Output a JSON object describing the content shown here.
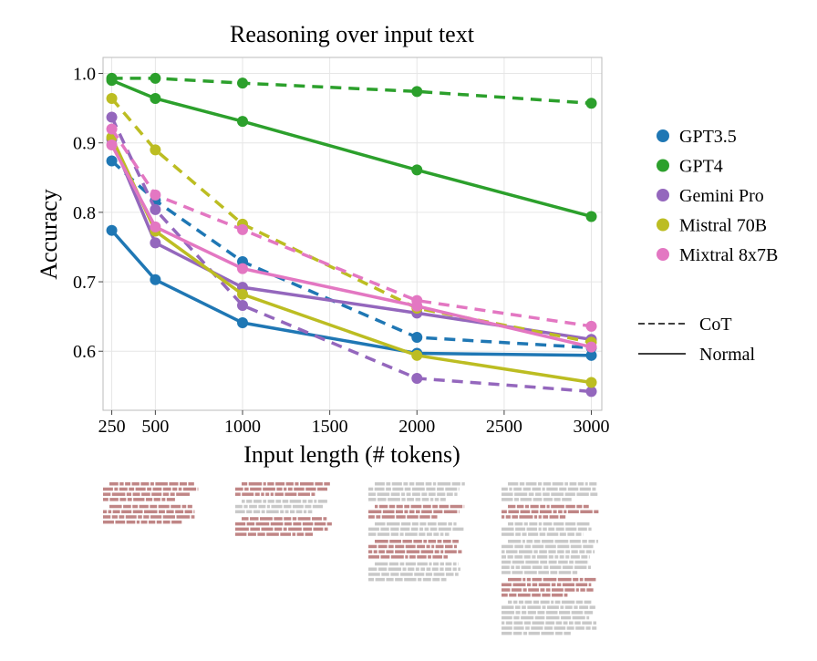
{
  "chart_data": {
    "type": "line",
    "title": "Reasoning over input text",
    "xlabel": "Input length (# tokens)",
    "ylabel": "Accuracy",
    "x": [
      250,
      500,
      1000,
      2000,
      3000
    ],
    "xticks": [
      250,
      500,
      1000,
      1500,
      2000,
      2500,
      3000
    ],
    "yticks": [
      0.6,
      0.7,
      0.8,
      0.9,
      1.0
    ],
    "ytick_labels": [
      "0.6",
      "0.7",
      "0.8",
      "0.9",
      "1.0"
    ],
    "xlim": [
      200,
      3060
    ],
    "ylim": [
      0.515,
      1.023
    ],
    "grid": true,
    "legend_placement": "right",
    "models": [
      {
        "name": "GPT3.5",
        "color": "#1f77b4"
      },
      {
        "name": "GPT4",
        "color": "#2ca02c"
      },
      {
        "name": "Gemini Pro",
        "color": "#9467bd"
      },
      {
        "name": "Mistral 70B",
        "color": "#bcbd22"
      },
      {
        "name": "Mixtral 8x7B",
        "color": "#e377c2"
      }
    ],
    "styles": [
      {
        "name": "CoT",
        "dash": "dashed"
      },
      {
        "name": "Normal",
        "dash": "solid"
      }
    ],
    "series": [
      {
        "model": "GPT3.5",
        "style": "Normal",
        "values": [
          0.774,
          0.703,
          0.641,
          0.597,
          0.594
        ]
      },
      {
        "model": "GPT3.5",
        "style": "CoT",
        "values": [
          0.874,
          0.817,
          0.729,
          0.62,
          0.605
        ]
      },
      {
        "model": "GPT4",
        "style": "Normal",
        "values": [
          0.99,
          0.964,
          0.931,
          0.861,
          0.794
        ]
      },
      {
        "model": "GPT4",
        "style": "CoT",
        "values": [
          0.993,
          0.993,
          0.986,
          0.974,
          0.957
        ]
      },
      {
        "model": "Gemini Pro",
        "style": "Normal",
        "values": [
          0.905,
          0.756,
          0.692,
          0.655,
          0.617
        ]
      },
      {
        "model": "Gemini Pro",
        "style": "CoT",
        "values": [
          0.937,
          0.804,
          0.666,
          0.561,
          0.542
        ]
      },
      {
        "model": "Mistral 70B",
        "style": "Normal",
        "values": [
          0.908,
          0.773,
          0.682,
          0.594,
          0.555
        ]
      },
      {
        "model": "Mistral 70B",
        "style": "CoT",
        "values": [
          0.964,
          0.89,
          0.783,
          0.662,
          0.613
        ]
      },
      {
        "model": "Mixtral 8x7B",
        "style": "Normal",
        "values": [
          0.897,
          0.779,
          0.719,
          0.665,
          0.606
        ]
      },
      {
        "model": "Mixtral 8x7B",
        "style": "CoT",
        "values": [
          0.92,
          0.825,
          0.775,
          0.673,
          0.636
        ]
      }
    ]
  }
}
